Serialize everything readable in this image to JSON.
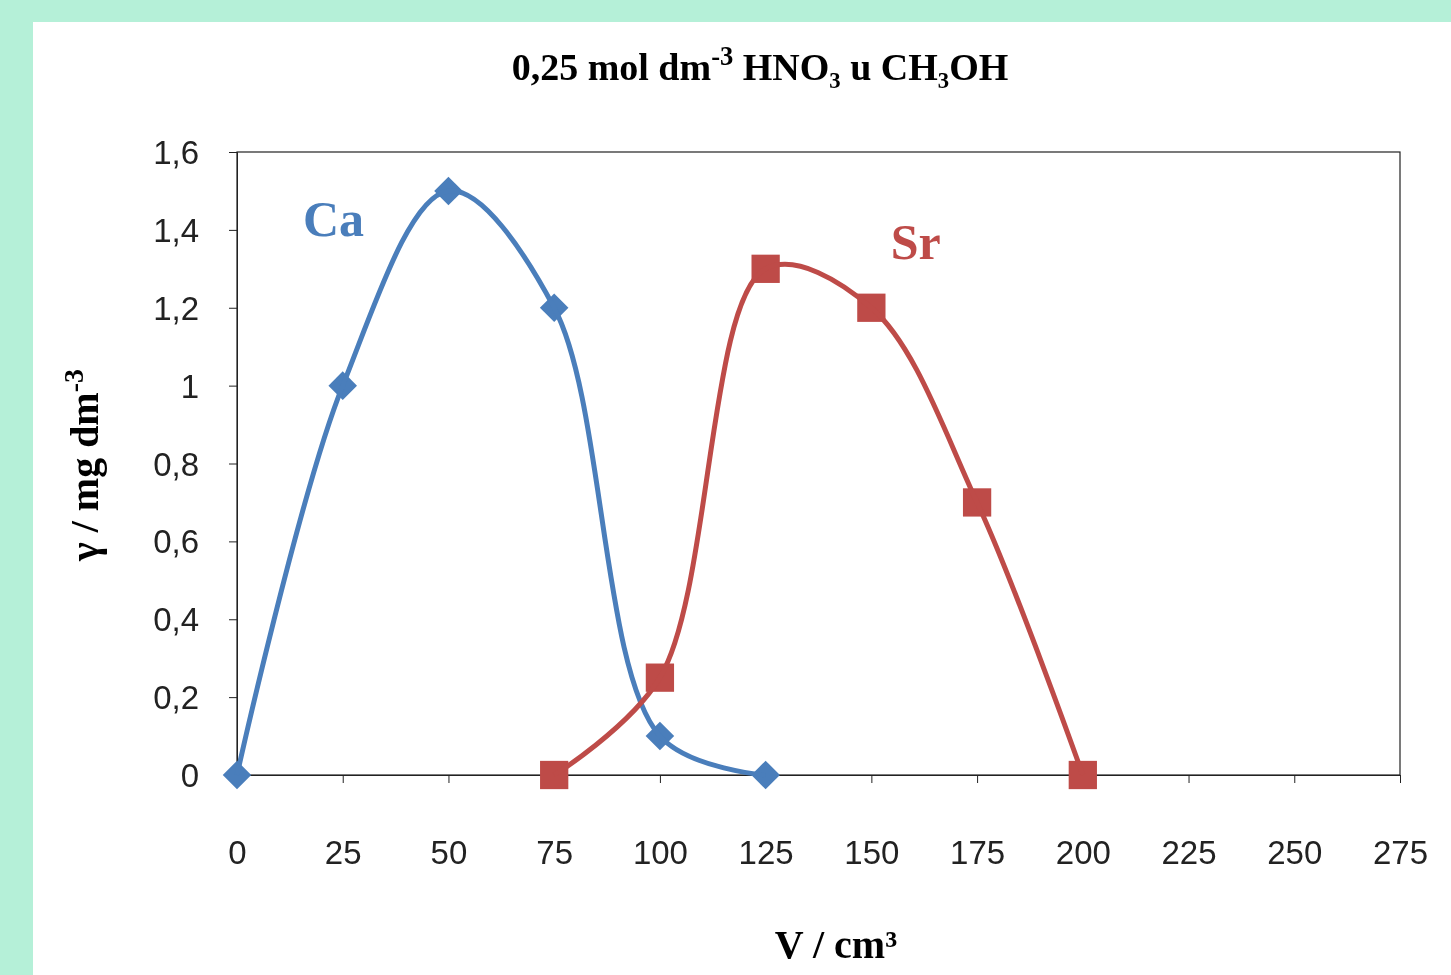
{
  "chart_data": {
    "type": "line",
    "title": "0,25 mol dm$^{-3}$ HNO₃ u CH₃OH",
    "xlabel": "V / cm³",
    "ylabel": "γ / mg dm$^{-3}$",
    "xlim": [
      0,
      275
    ],
    "xticks": [
      0,
      25,
      50,
      75,
      100,
      125,
      150,
      175,
      200,
      225,
      250,
      275
    ],
    "ylim": [
      0,
      1.6
    ],
    "yticks": [
      {
        "value": 0,
        "label": "0"
      },
      {
        "value": 0.2,
        "label": "0,2"
      },
      {
        "value": 0.4,
        "label": "0,4"
      },
      {
        "value": 0.6,
        "label": "0,6"
      },
      {
        "value": 0.8,
        "label": "0,8"
      },
      {
        "value": 1,
        "label": "1"
      },
      {
        "value": 1.2,
        "label": "1,2"
      },
      {
        "value": 1.4,
        "label": "1,4"
      },
      {
        "value": 1.6,
        "label": "1,6"
      }
    ],
    "grid": false,
    "legend": "top left",
    "line_style": "solid",
    "series": [
      {
        "name": "Ca",
        "color": "#4a7ebb",
        "marker": "diamond",
        "x": [
          0,
          25,
          50,
          75,
          100,
          125
        ],
        "values": [
          0,
          1,
          1.5,
          1.2,
          0.1,
          0
        ]
      },
      {
        "name": "Sr",
        "color": "#be4b48",
        "marker": "square",
        "x": [
          75,
          100,
          125,
          150,
          175,
          200
        ],
        "values": [
          0,
          0.25,
          1.3,
          1.2,
          0.7,
          0
        ]
      }
    ]
  }
}
